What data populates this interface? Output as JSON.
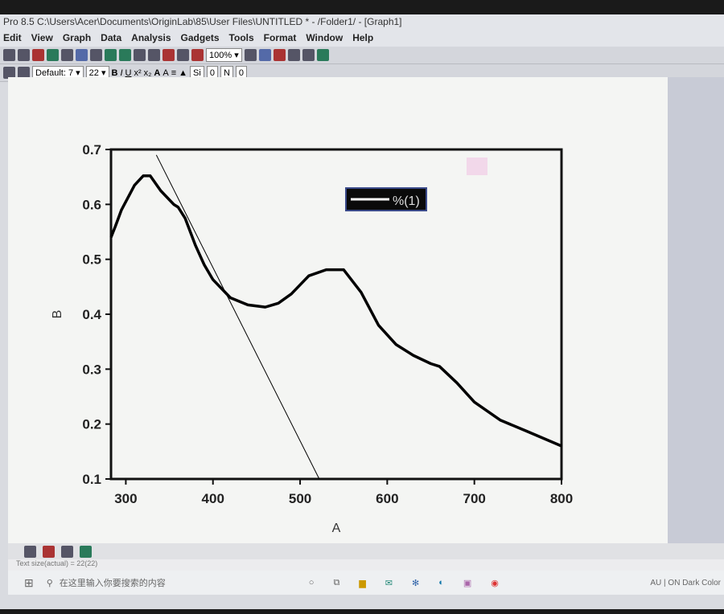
{
  "window": {
    "title": "Pro 8.5  C:\\Users\\Acer\\Documents\\OriginLab\\85\\User Files\\UNTITLED * - /Folder1/ - [Graph1]"
  },
  "menu": [
    "Edit",
    "View",
    "Graph",
    "Data",
    "Analysis",
    "Gadgets",
    "Tools",
    "Format",
    "Window",
    "Help"
  ],
  "toolbar": {
    "zoom": "100%",
    "font": "Default: 7",
    "font_size": "22",
    "line_style": "Si",
    "line_width": "0",
    "fill": "N",
    "pattern": "0"
  },
  "status": {
    "text": "Text size(actual) = 22(22)"
  },
  "taskbar": {
    "search_placeholder": "在这里输入你要搜索的内容",
    "tray": "AU | ON   Dark Color"
  },
  "chart_data": {
    "type": "line",
    "xlabel": "A",
    "ylabel": "B",
    "xlim": [
      283,
      800
    ],
    "ylim": [
      0.1,
      0.7
    ],
    "xticks": [
      300,
      400,
      500,
      600,
      700,
      800
    ],
    "yticks": [
      0.1,
      0.2,
      0.3,
      0.4,
      0.5,
      0.6,
      0.7
    ],
    "legend": {
      "label": "%(1)",
      "placement": "top-center"
    },
    "series": [
      {
        "name": "%(1)",
        "color": "#000000",
        "x": [
          283,
          288,
          295,
          300,
          310,
          320,
          328,
          340,
          355,
          360,
          368,
          380,
          390,
          400,
          420,
          440,
          460,
          475,
          490,
          510,
          530,
          550,
          570,
          590,
          610,
          630,
          650,
          660,
          680,
          700,
          730,
          760,
          800
        ],
        "y": [
          0.54,
          0.56,
          0.59,
          0.605,
          0.635,
          0.652,
          0.652,
          0.625,
          0.6,
          0.595,
          0.575,
          0.525,
          0.49,
          0.463,
          0.43,
          0.417,
          0.413,
          0.42,
          0.437,
          0.47,
          0.481,
          0.481,
          0.44,
          0.38,
          0.345,
          0.325,
          0.31,
          0.305,
          0.275,
          0.24,
          0.207,
          0.187,
          0.16
        ]
      }
    ],
    "tangent_line": {
      "x": [
        335,
        522
      ],
      "y": [
        0.69,
        0.1
      ],
      "color": "#000000"
    }
  }
}
